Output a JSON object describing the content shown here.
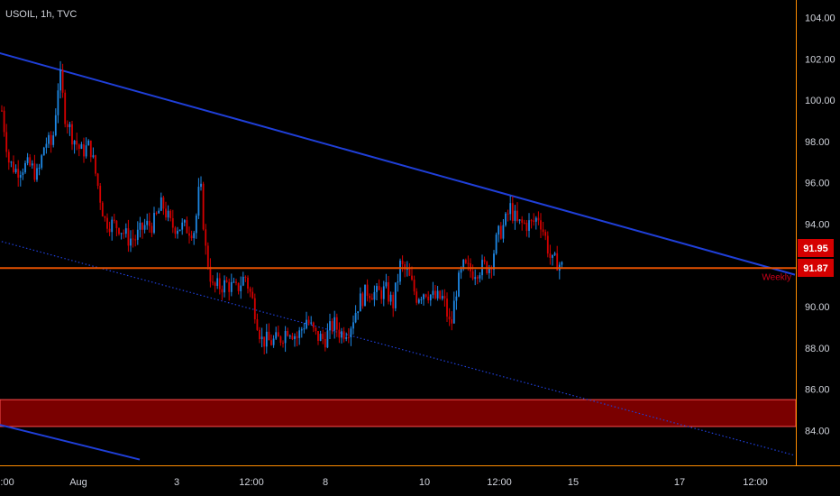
{
  "header": {
    "symbol": "USOIL, 1h, TVC"
  },
  "colors": {
    "background": "#000000",
    "axis_line": "#ff8c00",
    "up_candle": "#1e88e5",
    "down_candle": "#d50000",
    "channel_line": "#1f3fd8",
    "level_line": "#e65100",
    "zone_fill": "#7a0000",
    "zone_border": "#ff4d4d",
    "price_badge": "#d50000"
  },
  "chart_data": {
    "type": "candlestick",
    "symbol": "USOIL",
    "timeframe": "1h",
    "source": "TVC",
    "ylim": [
      82.6,
      104.8
    ],
    "yticks": [
      "104.00",
      "102.00",
      "100.00",
      "98.00",
      "96.00",
      "94.00",
      "92.00",
      "90.00",
      "88.00",
      "86.00",
      "84.00"
    ],
    "ytick_values": [
      104,
      102,
      100,
      98,
      96,
      94,
      92,
      90,
      88,
      86,
      84
    ],
    "xlim": [
      -2,
      882
    ],
    "xtick_labels": [
      "2:00",
      "Aug",
      "3",
      "12:00",
      "8",
      "10",
      "12:00",
      "15",
      "17",
      "12:00"
    ],
    "xtick_positions": [
      5,
      87,
      196,
      279,
      361,
      471,
      554,
      636,
      754,
      838
    ],
    "current_price": "91.95",
    "level_price": "91.87",
    "level_label": "Weekly",
    "level_value": 91.87,
    "zone": {
      "from": 84.2,
      "to": 85.5
    },
    "trendlines": [
      {
        "style": "solid",
        "from": [
          -2,
          102.3
        ],
        "to": [
          882,
          91.55
        ]
      },
      {
        "style": "dotted",
        "from": [
          -2,
          93.2
        ],
        "to": [
          882,
          82.8
        ]
      },
      {
        "style": "solid",
        "from": [
          -2,
          84.3
        ],
        "to": [
          155,
          82.6
        ]
      }
    ],
    "price_path": [
      [
        2,
        99.5
      ],
      [
        10,
        97.0
      ],
      [
        18,
        96.6
      ],
      [
        26,
        96.8
      ],
      [
        34,
        96.8
      ],
      [
        42,
        96.3
      ],
      [
        50,
        98.0
      ],
      [
        58,
        97.8
      ],
      [
        66,
        101.4
      ],
      [
        72,
        99.3
      ],
      [
        80,
        98.3
      ],
      [
        90,
        97.5
      ],
      [
        100,
        97.8
      ],
      [
        108,
        96.0
      ],
      [
        116,
        94.2
      ],
      [
        124,
        94.0
      ],
      [
        132,
        93.9
      ],
      [
        142,
        93.3
      ],
      [
        150,
        93.3
      ],
      [
        160,
        93.9
      ],
      [
        170,
        94.0
      ],
      [
        180,
        95.0
      ],
      [
        190,
        93.9
      ],
      [
        198,
        93.9
      ],
      [
        208,
        93.8
      ],
      [
        216,
        93.7
      ],
      [
        222,
        96.1
      ],
      [
        228,
        92.8
      ],
      [
        236,
        90.9
      ],
      [
        244,
        91.0
      ],
      [
        252,
        91.1
      ],
      [
        262,
        90.8
      ],
      [
        272,
        91.5
      ],
      [
        282,
        90.0
      ],
      [
        290,
        88.4
      ],
      [
        300,
        88.3
      ],
      [
        310,
        88.4
      ],
      [
        320,
        89.0
      ],
      [
        330,
        88.5
      ],
      [
        340,
        89.4
      ],
      [
        350,
        88.6
      ],
      [
        360,
        88.4
      ],
      [
        370,
        89.2
      ],
      [
        378,
        88.7
      ],
      [
        388,
        89.0
      ],
      [
        398,
        90.2
      ],
      [
        408,
        90.8
      ],
      [
        418,
        90.6
      ],
      [
        428,
        90.8
      ],
      [
        436,
        90.1
      ],
      [
        444,
        92.0
      ],
      [
        452,
        91.6
      ],
      [
        462,
        90.5
      ],
      [
        472,
        90.8
      ],
      [
        482,
        90.4
      ],
      [
        492,
        90.4
      ],
      [
        500,
        88.9
      ],
      [
        506,
        90.8
      ],
      [
        514,
        91.9
      ],
      [
        524,
        91.7
      ],
      [
        534,
        91.9
      ],
      [
        544,
        92.0
      ],
      [
        552,
        93.4
      ],
      [
        560,
        94.0
      ],
      [
        566,
        94.8
      ],
      [
        574,
        94.0
      ],
      [
        582,
        94.0
      ],
      [
        590,
        94.0
      ],
      [
        598,
        94.4
      ],
      [
        606,
        93.2
      ],
      [
        612,
        92.1
      ],
      [
        618,
        92.2
      ],
      [
        624,
        91.9
      ]
    ]
  }
}
